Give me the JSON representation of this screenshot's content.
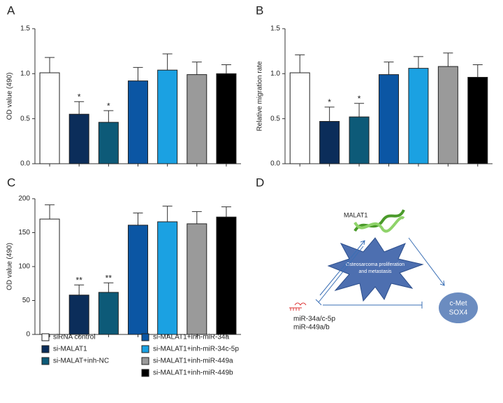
{
  "panel_labels": [
    "A",
    "B",
    "C",
    "D"
  ],
  "legend": {
    "items": [
      {
        "label": "siRNA control",
        "color": "#ffffff"
      },
      {
        "label": "si-MALAT1",
        "color": "#0b2d5a"
      },
      {
        "label": "si-MALAT+inh-NC",
        "color": "#0d5a78"
      },
      {
        "label": "si-MALAT1+inh-miR-34a",
        "color": "#0b56a4"
      },
      {
        "label": "si-MALAT1+inh-miR-34c-5p",
        "color": "#1ba1e2"
      },
      {
        "label": "si-MALAT1+inh-miR-449a",
        "color": "#9a9a9a"
      },
      {
        "label": "si-MALAT1+inh-miR-449b",
        "color": "#000000"
      }
    ]
  },
  "chart_data": [
    {
      "type": "bar",
      "ylabel": "OD value (490)",
      "values": [
        1.01,
        0.55,
        0.46,
        0.92,
        1.04,
        0.99,
        1.0
      ],
      "errors": [
        0.17,
        0.14,
        0.13,
        0.15,
        0.18,
        0.14,
        0.1
      ],
      "annotations": [
        null,
        "*",
        "*",
        null,
        null,
        null,
        null
      ],
      "ylim": [
        0,
        1.5
      ],
      "yticks": [
        {
          "value": 0,
          "label": "0.0"
        },
        0.5,
        {
          "value": 1,
          "label": "1.0"
        },
        1.5
      ]
    },
    {
      "type": "bar",
      "ylabel": "Relative migration rate",
      "values": [
        1.01,
        0.47,
        0.52,
        0.99,
        1.06,
        1.08,
        0.96
      ],
      "errors": [
        0.2,
        0.16,
        0.15,
        0.14,
        0.13,
        0.15,
        0.14
      ],
      "annotations": [
        null,
        "*",
        "*",
        null,
        null,
        null,
        null
      ],
      "ylim": [
        0,
        1.5
      ],
      "yticks": [
        {
          "value": 0,
          "label": "0.0"
        },
        0.5,
        {
          "value": 1,
          "label": "1.0"
        },
        1.5
      ]
    },
    {
      "type": "bar",
      "ylabel": "OD value (490)",
      "values": [
        170,
        58,
        62,
        161,
        166,
        163,
        173
      ],
      "errors": [
        21,
        15,
        14,
        18,
        23,
        18,
        15
      ],
      "annotations": [
        null,
        "**",
        "**",
        null,
        null,
        null,
        null
      ],
      "ylim": [
        0,
        200
      ],
      "yticks": [
        0,
        50,
        100,
        150,
        200
      ]
    }
  ],
  "diagram": {
    "gene": "MALAT1",
    "center": [
      "Osteosarcoma proliferation",
      "and metastasis"
    ],
    "mirnas": [
      "miR-34a/c-5p",
      "miR-449a/b"
    ],
    "targets": [
      "c-Met",
      "SOX4"
    ]
  }
}
